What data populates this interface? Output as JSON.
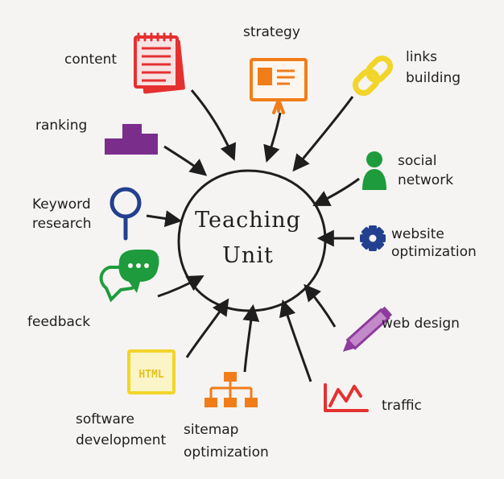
{
  "center": {
    "line1": "Teaching",
    "line2": "Unit"
  },
  "nodes": {
    "content": "content",
    "strategy": "strategy",
    "links_building": "links\nbuilding",
    "ranking": "ranking",
    "social_network": "social\nnetwork",
    "keyword_research": "Keyword\nresearch",
    "website_optimization": "website\noptimization",
    "feedback": "feedback",
    "web_design": "web design",
    "software_development": "software\ndevelopment",
    "sitemap_optimization": "sitemap\noptimization",
    "traffic": "traffic"
  },
  "icons": {
    "content": "notepad-icon",
    "strategy": "presentation-board-icon",
    "links_building": "chain-link-icon",
    "ranking": "podium-icon",
    "social_network": "person-icon",
    "keyword_research": "magnifier-icon",
    "website_optimization": "gear-icon",
    "feedback": "speech-bubbles-icon",
    "web_design": "pencil-icon",
    "software_development": "html-document-icon",
    "sitemap_optimization": "sitemap-icon",
    "traffic": "chart-icon"
  },
  "html_badge": "HTML",
  "colors": {
    "content": "#e53030",
    "strategy": "#f07d1a",
    "links_building": "#f2d52a",
    "ranking": "#7b2d8c",
    "social_network": "#1e9b3c",
    "keyword_research": "#23408f",
    "website_optimization": "#23408f",
    "feedback": "#1e9b3c",
    "web_design": "#8e3a9e",
    "software_development": "#f2d52a",
    "sitemap_optimization": "#f07d1a",
    "traffic": "#e53030"
  }
}
